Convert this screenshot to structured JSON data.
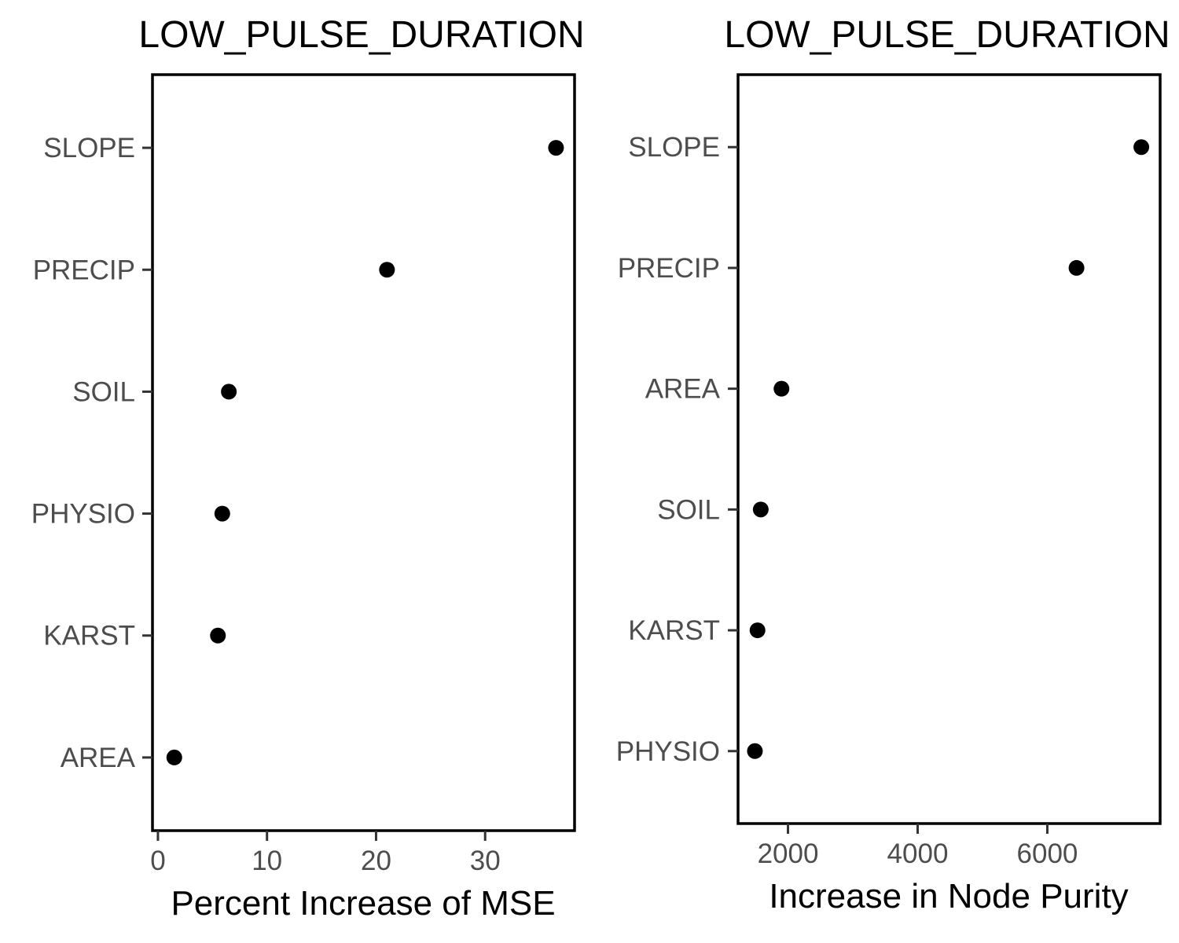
{
  "chart_data": [
    {
      "type": "scatter",
      "title": "LOW_PULSE_DURATION",
      "xlabel": "Percent Increase of MSE",
      "ylabel": "",
      "categories": [
        "SLOPE",
        "PRECIP",
        "SOIL",
        "PHYSIO",
        "KARST",
        "AREA"
      ],
      "values": [
        36.5,
        21.0,
        6.5,
        5.9,
        5.5,
        1.5
      ],
      "xlim": [
        -0.5,
        38.2
      ],
      "xticks": [
        0,
        10,
        20,
        30
      ],
      "xtick_labels": [
        "0",
        "10",
        "20",
        "30"
      ],
      "grid": false,
      "marker_color": "#000000"
    },
    {
      "type": "scatter",
      "title": "LOW_PULSE_DURATION",
      "xlabel": "Increase in Node Purity",
      "ylabel": "",
      "categories": [
        "SLOPE",
        "PRECIP",
        "AREA",
        "SOIL",
        "KARST",
        "PHYSIO"
      ],
      "values": [
        7450,
        6450,
        1900,
        1580,
        1530,
        1490
      ],
      "xlim": [
        1230,
        7740
      ],
      "xticks": [
        2000,
        4000,
        6000
      ],
      "xtick_labels": [
        "2000",
        "4000",
        "6000"
      ],
      "grid": false,
      "marker_color": "#000000"
    }
  ]
}
